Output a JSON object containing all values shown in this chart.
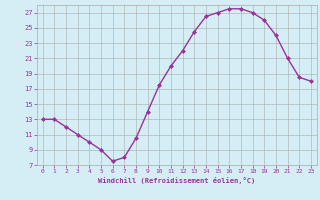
{
  "x": [
    0,
    1,
    2,
    3,
    4,
    5,
    6,
    7,
    8,
    9,
    10,
    11,
    12,
    13,
    14,
    15,
    16,
    17,
    18,
    19,
    20,
    21,
    22,
    23
  ],
  "y": [
    13,
    13,
    12,
    11,
    10,
    9,
    7.5,
    8,
    10.5,
    14,
    17.5,
    20,
    22,
    24.5,
    26.5,
    27,
    27.5,
    27.5,
    27,
    26,
    24,
    21,
    18.5,
    18
  ],
  "line_color": "#993399",
  "marker": "D",
  "marker_size": 2,
  "bg_color": "#d5eef5",
  "grid_color": "#aaaaaa",
  "xlabel": "Windchill (Refroidissement éolien,°C)",
  "xlabel_color": "#993399",
  "tick_color": "#993399",
  "ylim": [
    7,
    28
  ],
  "xlim": [
    -0.5,
    23.5
  ],
  "yticks": [
    7,
    9,
    11,
    13,
    15,
    17,
    19,
    21,
    23,
    25,
    27
  ],
  "xticks": [
    0,
    1,
    2,
    3,
    4,
    5,
    6,
    7,
    8,
    9,
    10,
    11,
    12,
    13,
    14,
    15,
    16,
    17,
    18,
    19,
    20,
    21,
    22,
    23
  ],
  "linewidth": 1.0
}
